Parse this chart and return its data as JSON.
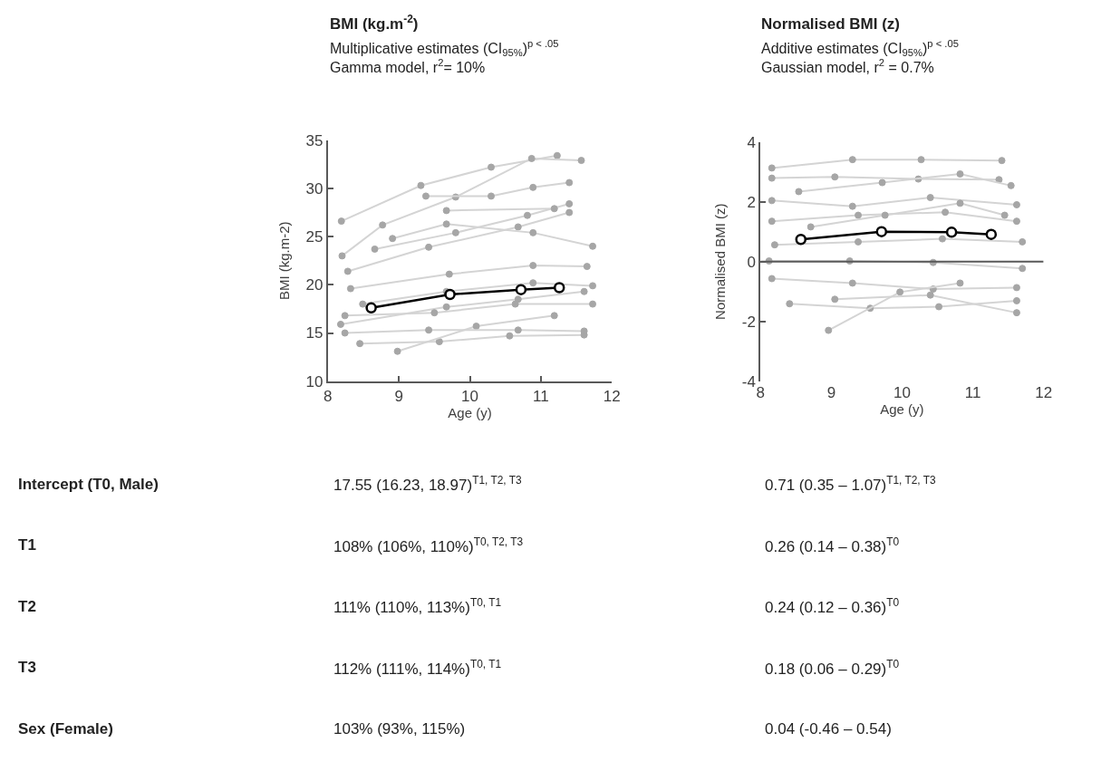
{
  "chart_data": [
    {
      "type": "line",
      "title": "BMI (kg.m$^{-2}$)",
      "subtitle": "Multiplicative estimates (CI$_{95%}$)$^{p < .05}$\nGamma model, r$^{2}$= 10%",
      "xlabel": "Age (y)",
      "ylabel": "BMI (kg.m-2)",
      "xlim": [
        8,
        12
      ],
      "xticks": [
        8,
        9,
        10,
        11,
        12
      ],
      "ylim": [
        10,
        35
      ],
      "yticks": [
        10,
        15,
        20,
        25,
        30,
        35
      ],
      "marker": "circle",
      "line_style": "solid",
      "annotations": [
        "Intercept (T0, Male)",
        "T1",
        "T2",
        "T3",
        "Sex (Female)",
        "17.55 (16.23, 18.97)$^{T1, T2, T3}$",
        "108% (106%, 110%)$^{T0, T2, T3}$",
        "111% (110%, 113%)$^{T0, T1}$",
        "112% (111%, 114%)$^{T0, T1}$",
        "103% (93%, 115%)"
      ],
      "series": [
        {
          "color": "#d4d4d4",
          "x": [
            8.19,
            9.31,
            10.3,
            11.23
          ],
          "values": [
            26.6,
            30.3,
            32.2,
            33.4
          ]
        },
        {
          "color": "#d4d4d4",
          "x": [
            8.2,
            8.77,
            9.8,
            10.87,
            11.57
          ],
          "values": [
            23.0,
            26.2,
            29.1,
            33.1,
            32.9
          ]
        },
        {
          "color": "#d4d4d4",
          "x": [
            8.28,
            9.42,
            10.68,
            11.4
          ],
          "values": [
            21.4,
            23.9,
            26.0,
            27.5
          ]
        },
        {
          "color": "#d4d4d4",
          "x": [
            8.18,
            9.67,
            10.68,
            11.61
          ],
          "values": [
            15.9,
            17.7,
            18.5,
            19.3
          ]
        },
        {
          "color": "#d4d4d4",
          "x": [
            8.45,
            9.57,
            10.56,
            11.61
          ],
          "values": [
            13.9,
            14.1,
            14.7,
            14.8
          ]
        },
        {
          "color": "#d4d4d4",
          "x": [
            8.98,
            10.09,
            11.19
          ],
          "values": [
            13.1,
            15.7,
            16.8
          ]
        },
        {
          "color": "#d4d4d4",
          "x": [
            8.66,
            9.8,
            10.81,
            11.4
          ],
          "values": [
            23.7,
            25.4,
            27.2,
            28.4
          ]
        },
        {
          "color": "#d4d4d4",
          "x": [
            9.67,
            11.19
          ],
          "values": [
            27.7,
            27.9
          ]
        },
        {
          "color": "#d4d4d4",
          "x": [
            8.24,
            9.42,
            10.68,
            11.61
          ],
          "values": [
            15.0,
            15.3,
            15.3,
            15.2
          ]
        },
        {
          "color": "#d4d4d4",
          "x": [
            8.32,
            9.71,
            10.89,
            11.65
          ],
          "values": [
            19.6,
            21.1,
            22.0,
            21.9
          ]
        },
        {
          "color": "#d4d4d4",
          "x": [
            8.24,
            9.5,
            10.64,
            11.73
          ],
          "values": [
            16.8,
            17.1,
            18.0,
            18.0
          ]
        },
        {
          "color": "#d4d4d4",
          "x": [
            8.49,
            9.67,
            10.89,
            11.73
          ],
          "values": [
            18.0,
            19.3,
            20.2,
            19.9
          ]
        },
        {
          "color": "#d4d4d4",
          "x": [
            8.91,
            9.67,
            10.89,
            11.73
          ],
          "values": [
            24.8,
            26.3,
            25.4,
            24.0
          ]
        },
        {
          "color": "#d4d4d4",
          "x": [
            9.38,
            10.3,
            10.89,
            11.4
          ],
          "values": [
            29.2,
            29.2,
            30.1,
            30.6
          ]
        },
        {
          "color": "#000000",
          "x": [
            8.61,
            9.72,
            10.72,
            11.26
          ],
          "values": [
            17.6,
            19.0,
            19.5,
            19.7
          ]
        }
      ]
    },
    {
      "type": "line",
      "title": "Normalised BMI (z)",
      "subtitle": "Additive estimates (CI$_{95%}$)$^{p < .05}$\nGaussian model, r$^{2}$ = 0.7%",
      "xlabel": "Age (y)",
      "ylabel": "Normalised BMI (z)",
      "xlim": [
        8,
        12
      ],
      "xticks": [
        8,
        9,
        10,
        11,
        12
      ],
      "ylim": [
        -4,
        4
      ],
      "yticks": [
        -4,
        -2,
        0,
        2,
        4
      ],
      "ref_lines": [
        {
          "axis": "y",
          "value": 0,
          "color": "#595959"
        }
      ],
      "marker": "circle",
      "line_style": "solid",
      "annotations": [
        "0.71 (0.35 – 1.07)$^{T1, T2, T3}$",
        "0.26 (0.14 – 0.38)$^{T0}$",
        "0.24 (0.12 – 0.36)$^{T0}$",
        "0.18 (0.06 – 0.29)$^{T0}$",
        "0.04 (-0.46 – 0.54)"
      ],
      "series": [
        {
          "color": "#d4d4d4",
          "x": [
            8.16,
            9.3,
            10.27,
            11.41
          ],
          "values": [
            3.13,
            3.41,
            3.41,
            3.38
          ]
        },
        {
          "color": "#d4d4d4",
          "x": [
            8.16,
            9.05,
            10.23,
            11.37
          ],
          "values": [
            2.79,
            2.83,
            2.76,
            2.74
          ]
        },
        {
          "color": "#d4d4d4",
          "x": [
            8.16,
            9.3,
            10.4,
            11.62
          ],
          "values": [
            2.04,
            1.85,
            2.14,
            1.9
          ]
        },
        {
          "color": "#d4d4d4",
          "x": [
            8.16,
            9.38,
            10.61,
            11.62
          ],
          "values": [
            1.35,
            1.55,
            1.65,
            1.35
          ]
        },
        {
          "color": "#d4d4d4",
          "x": [
            8.2,
            9.38,
            10.57,
            11.7
          ],
          "values": [
            0.56,
            0.66,
            0.76,
            0.66
          ]
        },
        {
          "color": "#d4d4d4",
          "x": [
            8.12,
            9.26,
            10.44,
            11.7
          ],
          "values": [
            0.02,
            0.02,
            -0.03,
            -0.23
          ]
        },
        {
          "color": "#d4d4d4",
          "x": [
            8.16,
            9.3,
            10.44,
            11.62
          ],
          "values": [
            -0.57,
            -0.72,
            -0.92,
            -0.87
          ]
        },
        {
          "color": "#d4d4d4",
          "x": [
            8.41,
            9.55,
            10.52,
            11.62
          ],
          "values": [
            -1.41,
            -1.56,
            -1.51,
            -1.31
          ]
        },
        {
          "color": "#d4d4d4",
          "x": [
            8.96,
            9.97,
            10.82
          ],
          "values": [
            -2.3,
            -1.02,
            -0.72
          ]
        },
        {
          "color": "#d4d4d4",
          "x": [
            9.05,
            10.4,
            11.62
          ],
          "values": [
            -1.26,
            -1.12,
            -1.71
          ]
        },
        {
          "color": "#d4d4d4",
          "x": [
            8.71,
            9.76,
            10.82,
            11.45
          ],
          "values": [
            1.16,
            1.55,
            1.95,
            1.55
          ]
        },
        {
          "color": "#d4d4d4",
          "x": [
            8.54,
            9.72,
            10.82,
            11.54
          ],
          "values": [
            2.34,
            2.64,
            2.93,
            2.54
          ]
        },
        {
          "color": "#000000",
          "x": [
            8.57,
            9.71,
            10.7,
            11.26
          ],
          "values": [
            0.74,
            1.0,
            0.98,
            0.91
          ]
        }
      ]
    }
  ]
}
